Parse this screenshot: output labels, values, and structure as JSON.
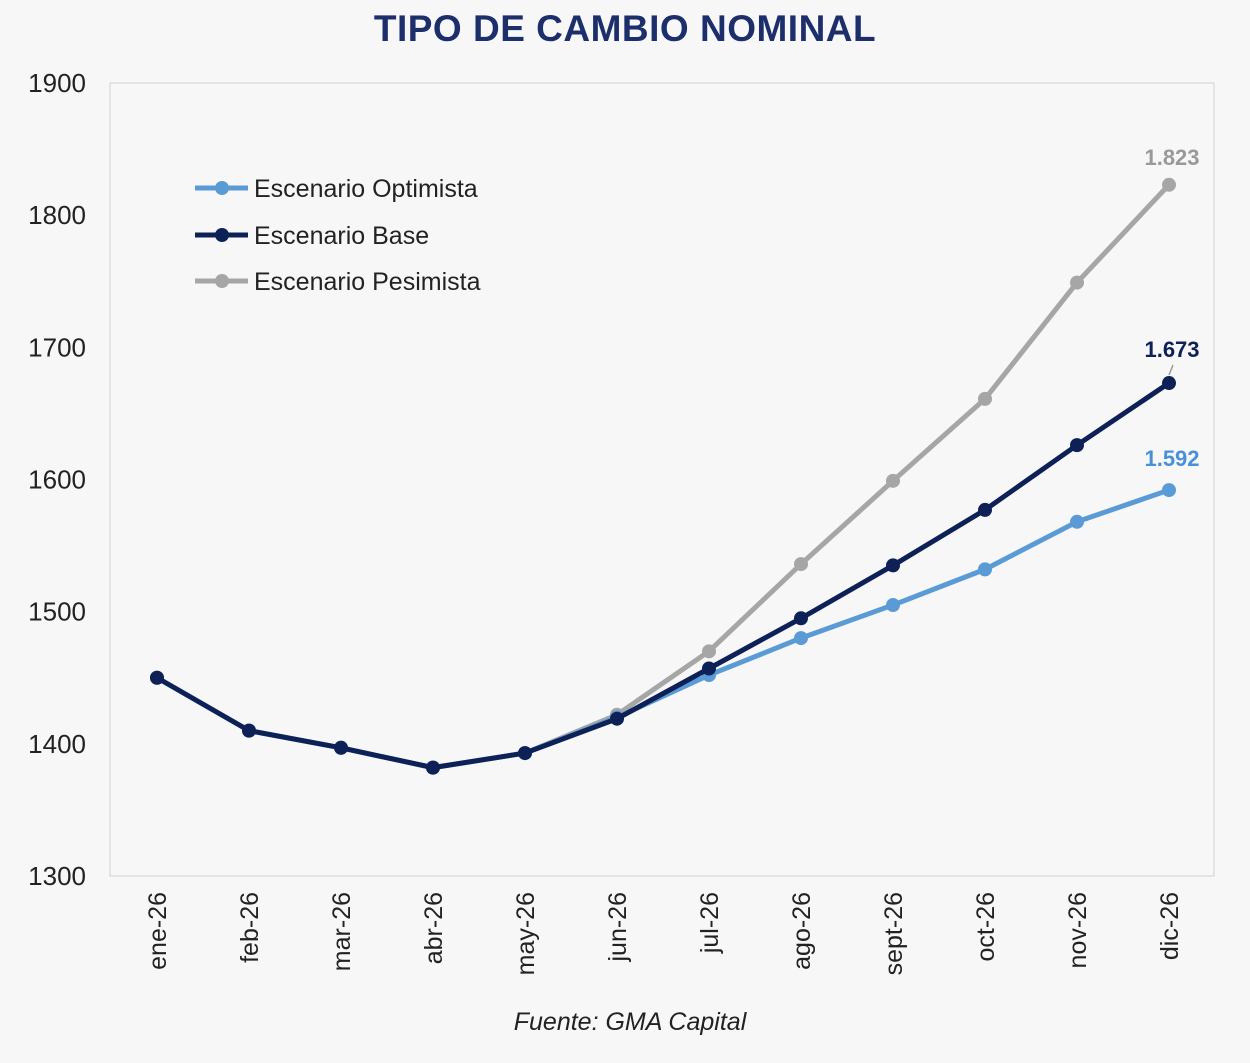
{
  "chart_data": {
    "type": "line",
    "title": "TIPO DE CAMBIO NOMINAL",
    "source": "Fuente: GMA Capital",
    "categories": [
      "ene-26",
      "feb-26",
      "mar-26",
      "abr-26",
      "may-26",
      "jun-26",
      "jul-26",
      "ago-26",
      "sept-26",
      "oct-26",
      "nov-26",
      "dic-26"
    ],
    "ylim": [
      1300,
      1900
    ],
    "yticks": [
      1300,
      1400,
      1500,
      1600,
      1700,
      1800,
      1900
    ],
    "grid": false,
    "legend_position": "top-left",
    "series": [
      {
        "name": "Escenario Optimista",
        "color": "#5b9bd5",
        "label_color": "#4a90d9",
        "values": [
          1450,
          1410,
          1397,
          1382,
          1393,
          1420,
          1452,
          1480,
          1505,
          1532,
          1568,
          1592
        ],
        "end_label": "1.592"
      },
      {
        "name": "Escenario Base",
        "color": "#0d2157",
        "label_color": "#0d2157",
        "values": [
          1450,
          1410,
          1397,
          1382,
          1393,
          1419,
          1457,
          1495,
          1535,
          1577,
          1626,
          1673
        ],
        "end_label": "1.673"
      },
      {
        "name": "Escenario Pesimista",
        "color": "#a6a6a6",
        "label_color": "#999999",
        "values": [
          1450,
          1410,
          1397,
          1382,
          1393,
          1422,
          1470,
          1536,
          1599,
          1661,
          1749,
          1823
        ],
        "end_label": "1.823"
      }
    ]
  }
}
